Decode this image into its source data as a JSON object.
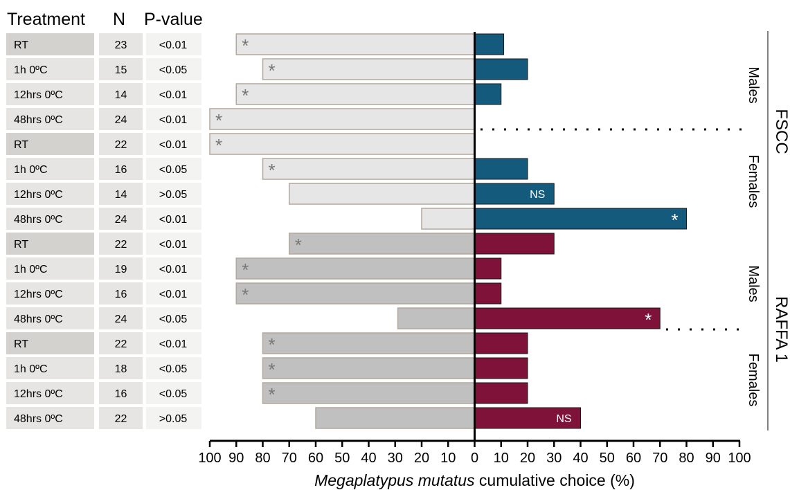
{
  "table": {
    "headers": {
      "treatment": "Treatment",
      "n": "N",
      "pvalue": "P-value"
    },
    "rows": [
      {
        "treatment": "RT",
        "n": "23",
        "p": "<0.01"
      },
      {
        "treatment": "1h 0ºC",
        "n": "15",
        "p": "<0.05"
      },
      {
        "treatment": "12hrs 0ºC",
        "n": "14",
        "p": "<0.01"
      },
      {
        "treatment": "48hrs 0ºC",
        "n": "24",
        "p": "<0.01"
      },
      {
        "treatment": "RT",
        "n": "22",
        "p": "<0.01"
      },
      {
        "treatment": "1h 0ºC",
        "n": "16",
        "p": "<0.05"
      },
      {
        "treatment": "12hrs 0ºC",
        "n": "14",
        "p": ">0.05"
      },
      {
        "treatment": "48hrs 0ºC",
        "n": "24",
        "p": "<0.01"
      },
      {
        "treatment": "RT",
        "n": "22",
        "p": "<0.01"
      },
      {
        "treatment": "1h 0ºC",
        "n": "19",
        "p": "<0.01"
      },
      {
        "treatment": "12hrs 0ºC",
        "n": "16",
        "p": "<0.01"
      },
      {
        "treatment": "48hrs 0ºC",
        "n": "24",
        "p": "<0.05"
      },
      {
        "treatment": "RT",
        "n": "22",
        "p": "<0.01"
      },
      {
        "treatment": "1h 0ºC",
        "n": "18",
        "p": "<0.05"
      },
      {
        "treatment": "12hrs 0ºC",
        "n": "16",
        "p": "<0.05"
      },
      {
        "treatment": "48hrs 0ºC",
        "n": "22",
        "p": ">0.05"
      }
    ]
  },
  "chart_data": {
    "type": "bar",
    "orientation": "horizontal-diverging",
    "xlabel_italic": "Megaplatypus mutatus",
    "xlabel_rest": " cumulative choice (%)",
    "xlim": [
      -100,
      100
    ],
    "x_ticks": [
      -100,
      -90,
      -80,
      -70,
      -60,
      -50,
      -40,
      -30,
      -20,
      -10,
      0,
      10,
      20,
      30,
      40,
      50,
      60,
      70,
      80,
      90,
      100
    ],
    "tick_labels": [
      "100",
      "90",
      "80",
      "70",
      "60",
      "50",
      "40",
      "30",
      "20",
      "10",
      "0",
      "10",
      "20",
      "30",
      "40",
      "50",
      "60",
      "70",
      "80",
      "90",
      "100"
    ],
    "categories": [
      "RT",
      "1h 0ºC",
      "12hrs 0ºC",
      "48hrs 0ºC",
      "RT",
      "1h 0ºC",
      "12hrs 0ºC",
      "48hrs 0ºC",
      "RT",
      "1h 0ºC",
      "12hrs 0ºC",
      "48hrs 0ºC",
      "RT",
      "1h 0ºC",
      "12hrs 0ºC",
      "48hrs 0ºC"
    ],
    "series": [
      {
        "side": "left",
        "values": [
          90,
          80,
          90,
          100,
          100,
          80,
          70,
          20,
          70,
          90,
          90,
          29,
          80,
          80,
          80,
          60
        ],
        "labels": [
          "*",
          "*",
          "*",
          "*",
          "*",
          "*",
          "",
          "",
          "*",
          "*",
          "*",
          "",
          "*",
          "*",
          "*",
          ""
        ]
      },
      {
        "side": "right",
        "values": [
          11,
          20,
          10,
          0,
          0,
          20,
          30,
          80,
          30,
          10,
          10,
          70,
          20,
          20,
          20,
          40
        ],
        "labels": [
          "",
          "",
          "",
          "",
          "",
          "",
          "NS",
          "*",
          "",
          "",
          "",
          "*",
          "",
          "",
          "",
          "NS"
        ]
      }
    ],
    "groups": [
      {
        "experiment": "FSCC",
        "sex_labels": [
          "Males",
          "Females"
        ]
      },
      {
        "experiment": "RAFFA 1",
        "sex_labels": [
          "Males",
          "Females"
        ]
      }
    ],
    "colors": {
      "fscc_left": "#e6e6e6",
      "raffa_left": "#c0c0c0",
      "left_border": "#b3a89c",
      "fscc_right": "#135a7d",
      "raffa_right": "#7e1238",
      "star_left": "#777777",
      "label_right": "#ffffff",
      "cell_dark": "#d4d2cf",
      "cell_mid": "#e6e5e3",
      "cell_light": "#f3f3f2"
    }
  }
}
